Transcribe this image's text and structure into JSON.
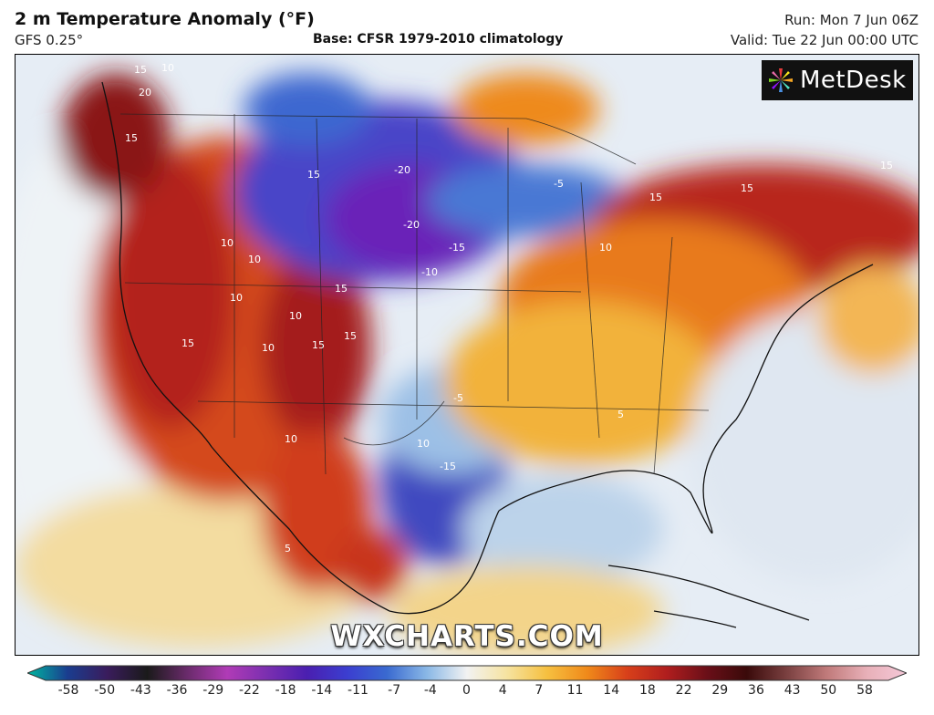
{
  "header": {
    "title": "2 m Temperature Anomaly (°F)",
    "model": "GFS 0.25°",
    "base": "Base: CFSR 1979-2010 climatology",
    "run": "Run: Mon 7 Jun 06Z",
    "valid": "Valid: Tue 22 Jun 00:00 UTC"
  },
  "logo": {
    "text": "MetDesk"
  },
  "watermark": "WXCHARTS.COM",
  "colorbar": {
    "ticks": [
      "-58",
      "-50",
      "-43",
      "-36",
      "-29",
      "-22",
      "-18",
      "-14",
      "-11",
      "-7",
      "-4",
      "0",
      "4",
      "7",
      "11",
      "14",
      "18",
      "22",
      "29",
      "36",
      "43",
      "50",
      "58"
    ],
    "colors": [
      "#00b8a0",
      "#1a3d8f",
      "#3a1c5c",
      "#1a1a1a",
      "#6a2b6b",
      "#b03bb6",
      "#7a2fb0",
      "#4a1fb0",
      "#3b3ed0",
      "#3a6ad0",
      "#8ab8e6",
      "#f2f2f2",
      "#f6e3a0",
      "#f6c040",
      "#f08a1a",
      "#d8401a",
      "#b01e1e",
      "#6a0f18",
      "#3a0a0a",
      "#7a4040",
      "#c07a7a",
      "#e8b0b8",
      "#f4c8d8"
    ]
  },
  "map": {
    "contour_labels": [
      "15",
      "20",
      "10",
      "15",
      "-20",
      "-20",
      "-15",
      "-10",
      "15",
      "10",
      "10",
      "15",
      "10",
      "15",
      "10",
      "15",
      "15",
      "10",
      "-5",
      "10",
      "-15",
      "10",
      "15",
      "5",
      "5",
      "-5",
      "10",
      "15",
      "15"
    ]
  }
}
